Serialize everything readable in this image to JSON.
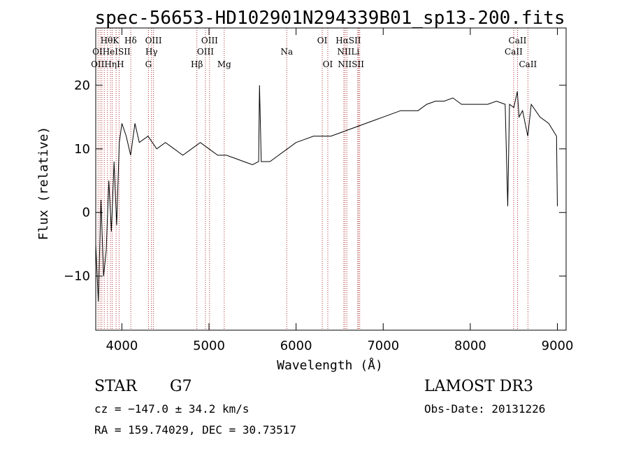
{
  "chart_data": {
    "type": "line",
    "title": "spec-56653-HD102901N294339B01_sp13-200.fits",
    "xlabel": "Wavelength (Å)",
    "ylabel": "Flux (relative)",
    "xlim": [
      3700,
      9100
    ],
    "ylim": [
      -18.5,
      29
    ],
    "x_ticks": [
      4000,
      5000,
      6000,
      7000,
      8000,
      9000
    ],
    "y_ticks": [
      -10,
      0,
      10,
      20
    ],
    "x_tick_labels": [
      "4000",
      "5000",
      "6000",
      "7000",
      "8000",
      "9000"
    ],
    "y_tick_labels": [
      "−10",
      "0",
      "10",
      "20"
    ],
    "series": [
      {
        "name": "flux",
        "x": [
          3700,
          3730,
          3760,
          3790,
          3820,
          3850,
          3880,
          3910,
          3940,
          3970,
          4000,
          4050,
          4100,
          4150,
          4200,
          4300,
          4400,
          4500,
          4600,
          4700,
          4800,
          4900,
          5000,
          5100,
          5200,
          5300,
          5400,
          5500,
          5570,
          5580,
          5600,
          5700,
          5800,
          5900,
          6000,
          6100,
          6200,
          6300,
          6400,
          6500,
          6600,
          6700,
          6800,
          6900,
          7000,
          7100,
          7200,
          7300,
          7400,
          7500,
          7600,
          7700,
          7800,
          7900,
          8000,
          8100,
          8200,
          8300,
          8400,
          8430,
          8450,
          8500,
          8540,
          8560,
          8600,
          8660,
          8700,
          8800,
          8900,
          8990,
          9000
        ],
        "y": [
          -5,
          -14,
          2,
          -10,
          -6,
          5,
          -3,
          8,
          -2,
          11,
          14,
          12,
          9,
          14,
          11,
          12,
          10,
          11,
          10,
          9,
          10,
          11,
          10,
          9,
          9,
          8.5,
          8,
          7.5,
          8,
          20,
          8,
          8,
          9,
          10,
          11,
          11.5,
          12,
          12,
          12,
          12.5,
          13,
          13.5,
          14,
          14.5,
          15,
          15.5,
          16,
          16,
          16,
          17,
          17.5,
          17.5,
          18,
          17,
          17,
          17,
          17,
          17.5,
          17,
          1,
          17,
          16.5,
          19,
          15,
          16,
          12,
          17,
          15,
          14,
          12,
          1
        ]
      }
    ],
    "spectral_lines": [
      {
        "label": "HθK",
        "row": 0,
        "wavelength": 3860
      },
      {
        "label": "Hδ",
        "row": 0,
        "wavelength": 4100
      },
      {
        "label": "OIII",
        "row": 0,
        "wavelength": 4363
      },
      {
        "label": "OIII",
        "row": 0,
        "wavelength": 5007
      },
      {
        "label": "OI",
        "row": 0,
        "wavelength": 6300
      },
      {
        "label": "HαSII",
        "row": 0,
        "wavelength": 6600
      },
      {
        "label": "CaII",
        "row": 0,
        "wavelength": 8542
      },
      {
        "label": "OIHeISII",
        "row": 1,
        "wavelength": 3880
      },
      {
        "label": "Hγ",
        "row": 1,
        "wavelength": 4340
      },
      {
        "label": "OIII",
        "row": 1,
        "wavelength": 4959
      },
      {
        "label": "Na",
        "row": 1,
        "wavelength": 5893
      },
      {
        "label": "NIILi",
        "row": 1,
        "wavelength": 6600
      },
      {
        "label": "CaII",
        "row": 1,
        "wavelength": 8498
      },
      {
        "label": "OIIHηH",
        "row": 2,
        "wavelength": 3835
      },
      {
        "label": "G",
        "row": 2,
        "wavelength": 4305
      },
      {
        "label": "Hβ",
        "row": 2,
        "wavelength": 4861
      },
      {
        "label": "Mg",
        "row": 2,
        "wavelength": 5175
      },
      {
        "label": "OI",
        "row": 2,
        "wavelength": 6364
      },
      {
        "label": "NIISII",
        "row": 2,
        "wavelength": 6630
      },
      {
        "label": "CaII",
        "row": 2,
        "wavelength": 8662
      }
    ],
    "line_markers": [
      3727,
      3750,
      3770,
      3798,
      3835,
      3869,
      3889,
      3934,
      3968,
      4102,
      4305,
      4340,
      4363,
      4861,
      4959,
      5007,
      5175,
      5893,
      6300,
      6364,
      6548,
      6563,
      6583,
      6708,
      6717,
      6731,
      8498,
      8542,
      8662
    ]
  },
  "colors": {
    "line_marker": "#b03030",
    "spectrum": "#000000"
  },
  "info": {
    "object_class": "STAR",
    "subclass": "G7",
    "survey": "LAMOST DR3",
    "cz": "cz = −147.0 ± 34.2 km/s",
    "obs_date": "Obs-Date: 20131226",
    "coords": "RA = 159.74029, DEC =  30.73517"
  }
}
